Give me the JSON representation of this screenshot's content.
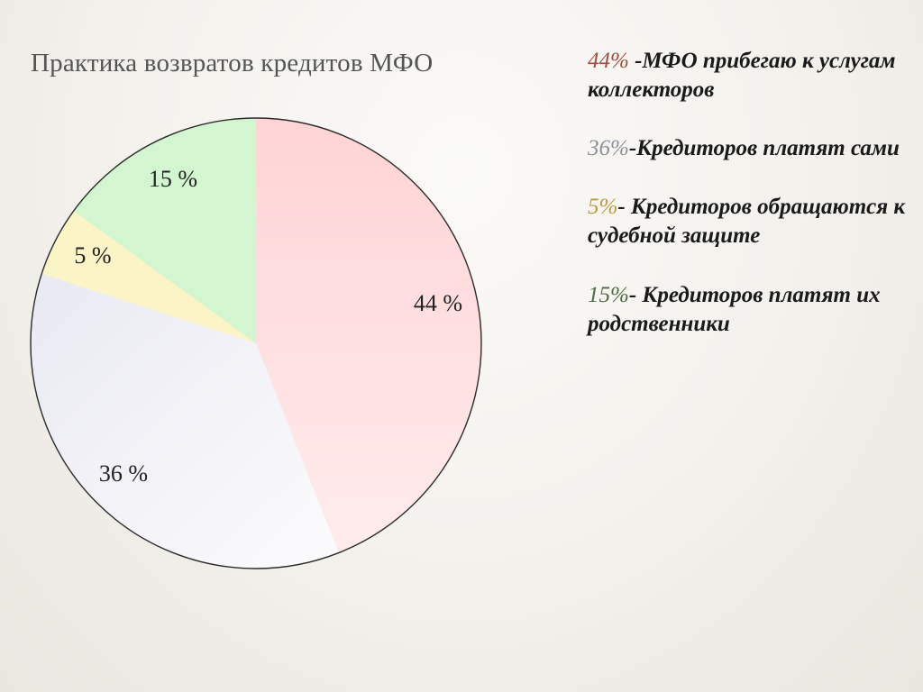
{
  "title": "Практика возвратов кредитов МФО",
  "chart_data": {
    "type": "pie",
    "title": "Практика возвратов кредитов МФО",
    "slices": [
      {
        "value": 44,
        "label": "44 %",
        "color": "#ffd4d6"
      },
      {
        "value": 36,
        "label": "36 %",
        "color": "#e9e9f2"
      },
      {
        "value": 5,
        "label": "5 %",
        "color": "#fbf4c6"
      },
      {
        "value": 15,
        "label": "15 %",
        "color": "#d3f5cf"
      }
    ]
  },
  "legend": [
    {
      "pct": "44%",
      "text": " -МФО прибегаю к услугам коллекторов",
      "pct_color": "#a34a3e"
    },
    {
      "pct": "36%",
      "text": "-Кредиторов платят сами",
      "pct_color": "#8e8e98"
    },
    {
      "pct": "5%",
      "text": "- Кредиторов обращаются к судебной защите",
      "pct_color": "#b89a42"
    },
    {
      "pct": "15%",
      "text": "- Кредиторов платят их родственники",
      "pct_color": "#4e6b40"
    }
  ]
}
